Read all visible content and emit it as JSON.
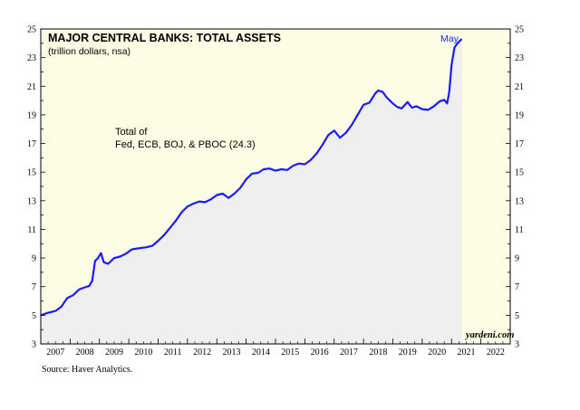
{
  "chart_data": {
    "type": "area",
    "title": "MAJOR CENTRAL BANKS: TOTAL ASSETS",
    "subtitle": "(trillion dollars, nsa)",
    "annotation": [
      "Total of",
      "Fed, ECB, BOJ, & PBOC (24.3)"
    ],
    "end_label": "May",
    "brand": "yardeni.com",
    "xlim": [
      2007,
      2023
    ],
    "ylim": [
      3,
      25
    ],
    "yticks": [
      3,
      5,
      7,
      9,
      11,
      13,
      15,
      17,
      19,
      21,
      23,
      25
    ],
    "xtick_labels": [
      "2007",
      "2008",
      "2009",
      "2010",
      "2011",
      "2012",
      "2013",
      "2014",
      "2015",
      "2016",
      "2017",
      "2018",
      "2019",
      "2020",
      "2021",
      "2022"
    ],
    "grid": false,
    "line_color": "#1a1aff",
    "fill_color": "#efefef",
    "background_color": "#fdfde6",
    "series": [
      {
        "values": [
          [
            2007.0,
            5.0
          ],
          [
            2007.2,
            5.15
          ],
          [
            2007.5,
            5.3
          ],
          [
            2007.7,
            5.6
          ],
          [
            2007.9,
            6.2
          ],
          [
            2008.1,
            6.4
          ],
          [
            2008.3,
            6.8
          ],
          [
            2008.5,
            6.95
          ],
          [
            2008.65,
            7.05
          ],
          [
            2008.75,
            7.4
          ],
          [
            2008.85,
            8.8
          ],
          [
            2008.95,
            9.0
          ],
          [
            2009.05,
            9.35
          ],
          [
            2009.15,
            8.7
          ],
          [
            2009.3,
            8.6
          ],
          [
            2009.5,
            9.0
          ],
          [
            2009.7,
            9.1
          ],
          [
            2009.9,
            9.3
          ],
          [
            2010.1,
            9.6
          ],
          [
            2010.4,
            9.7
          ],
          [
            2010.6,
            9.75
          ],
          [
            2010.8,
            9.85
          ],
          [
            2011.0,
            10.2
          ],
          [
            2011.2,
            10.6
          ],
          [
            2011.4,
            11.1
          ],
          [
            2011.6,
            11.6
          ],
          [
            2011.8,
            12.2
          ],
          [
            2012.0,
            12.6
          ],
          [
            2012.2,
            12.8
          ],
          [
            2012.4,
            12.95
          ],
          [
            2012.6,
            12.9
          ],
          [
            2012.8,
            13.1
          ],
          [
            2013.0,
            13.4
          ],
          [
            2013.2,
            13.5
          ],
          [
            2013.4,
            13.2
          ],
          [
            2013.6,
            13.5
          ],
          [
            2013.8,
            13.9
          ],
          [
            2014.0,
            14.5
          ],
          [
            2014.2,
            14.9
          ],
          [
            2014.4,
            14.95
          ],
          [
            2014.6,
            15.2
          ],
          [
            2014.8,
            15.25
          ],
          [
            2015.0,
            15.1
          ],
          [
            2015.2,
            15.2
          ],
          [
            2015.4,
            15.15
          ],
          [
            2015.6,
            15.45
          ],
          [
            2015.8,
            15.6
          ],
          [
            2016.0,
            15.55
          ],
          [
            2016.2,
            15.85
          ],
          [
            2016.4,
            16.3
          ],
          [
            2016.6,
            16.9
          ],
          [
            2016.8,
            17.6
          ],
          [
            2017.0,
            17.9
          ],
          [
            2017.2,
            17.4
          ],
          [
            2017.4,
            17.75
          ],
          [
            2017.6,
            18.3
          ],
          [
            2017.8,
            19.0
          ],
          [
            2018.0,
            19.7
          ],
          [
            2018.2,
            19.85
          ],
          [
            2018.4,
            20.5
          ],
          [
            2018.5,
            20.7
          ],
          [
            2018.65,
            20.6
          ],
          [
            2018.8,
            20.2
          ],
          [
            2019.0,
            19.8
          ],
          [
            2019.15,
            19.55
          ],
          [
            2019.3,
            19.45
          ],
          [
            2019.5,
            19.9
          ],
          [
            2019.65,
            19.5
          ],
          [
            2019.8,
            19.6
          ],
          [
            2020.0,
            19.4
          ],
          [
            2020.2,
            19.35
          ],
          [
            2020.4,
            19.6
          ],
          [
            2020.6,
            19.95
          ],
          [
            2020.75,
            20.05
          ],
          [
            2020.85,
            19.8
          ],
          [
            2020.92,
            20.6
          ],
          [
            2021.0,
            22.5
          ],
          [
            2021.1,
            23.7
          ],
          [
            2021.2,
            24.0
          ],
          [
            2021.35,
            24.3
          ]
        ]
      }
    ]
  },
  "footer": {
    "source": "Source: Haver Analytics."
  }
}
